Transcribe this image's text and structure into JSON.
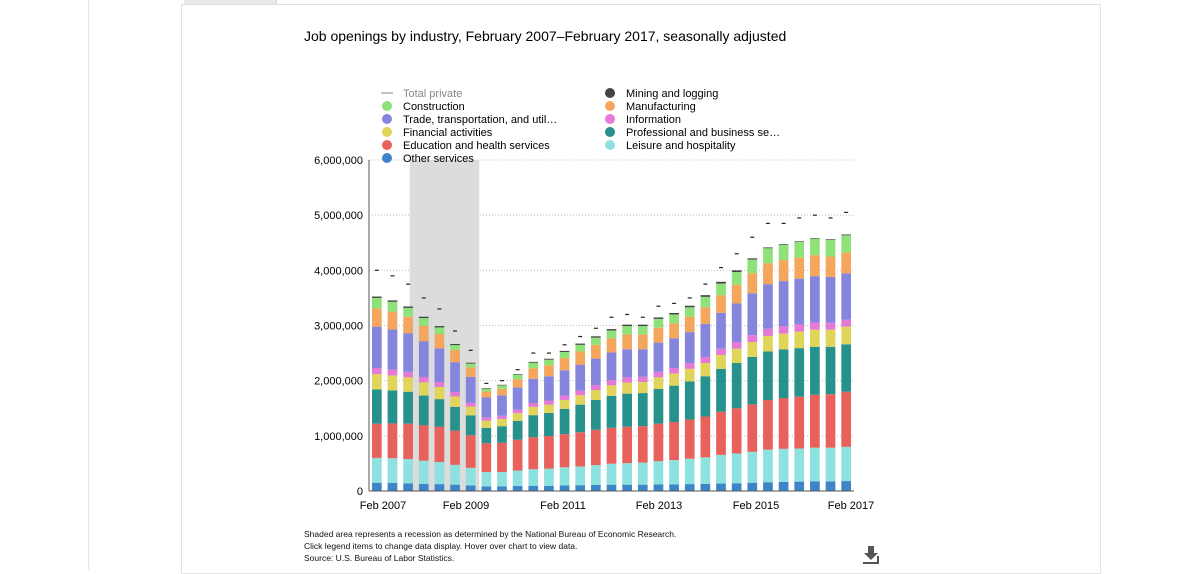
{
  "title": "Job openings by industry, February 2007–February 2017, seasonally adjusted",
  "notes": [
    "Shaded area represents a recession as determined by the National Bureau of Economic Research.",
    "Click legend items to change data display. Hover over chart to view data.",
    "Source: U.S. Bureau of Labor Statistics."
  ],
  "download_icon": "download-icon",
  "chart_data": {
    "type": "bar",
    "stacked": true,
    "title": "Job openings by industry, February 2007–February 2017, seasonally adjusted",
    "xlabel": "",
    "ylabel": "",
    "ylim": [
      0,
      6000000
    ],
    "yticks": [
      0,
      1000000,
      2000000,
      3000000,
      4000000,
      5000000,
      6000000
    ],
    "ytick_labels": [
      "0",
      "1,000,000",
      "2,000,000",
      "3,000,000",
      "4,000,000",
      "5,000,000",
      "6,000,000"
    ],
    "xtick_labels": [
      "Feb 2007",
      "Feb 2009",
      "Feb 2011",
      "Feb 2013",
      "Feb 2015",
      "Feb 2017"
    ],
    "grid": "horizontal dotted",
    "recession_shade": {
      "start": "Dec 2007",
      "end": "Jun 2009"
    },
    "legend_position": "top",
    "x": [
      "Feb 2007",
      "Jun 2007",
      "Oct 2007",
      "Feb 2008",
      "Jun 2008",
      "Oct 2008",
      "Feb 2009",
      "Jun 2009",
      "Oct 2009",
      "Feb 2010",
      "Jun 2010",
      "Oct 2010",
      "Feb 2011",
      "Jun 2011",
      "Oct 2011",
      "Feb 2012",
      "Jun 2012",
      "Oct 2012",
      "Feb 2013",
      "Jun 2013",
      "Oct 2013",
      "Feb 2014",
      "Jun 2014",
      "Oct 2014",
      "Feb 2015",
      "Jun 2015",
      "Oct 2015",
      "Feb 2016",
      "Jun 2016",
      "Oct 2016",
      "Feb 2017"
    ],
    "total_private": [
      4000000,
      3900000,
      3750000,
      3500000,
      3300000,
      2900000,
      2550000,
      1950000,
      2000000,
      2200000,
      2500000,
      2500000,
      2650000,
      2800000,
      2950000,
      3150000,
      3200000,
      3150000,
      3350000,
      3400000,
      3500000,
      3750000,
      4050000,
      4300000,
      4600000,
      4850000,
      4850000,
      4950000,
      5000000,
      4950000,
      5050000
    ],
    "series": [
      {
        "name": "Other services",
        "color": "#3d85c6",
        "values": [
          150000,
          145000,
          140000,
          130000,
          125000,
          115000,
          100000,
          85000,
          85000,
          90000,
          95000,
          95000,
          100000,
          105000,
          110000,
          115000,
          115000,
          115000,
          120000,
          120000,
          125000,
          130000,
          135000,
          140000,
          150000,
          160000,
          165000,
          170000,
          175000,
          175000,
          180000
        ]
      },
      {
        "name": "Leisure and hospitality",
        "color": "#8de2e0",
        "values": [
          450000,
          450000,
          440000,
          420000,
          400000,
          360000,
          320000,
          260000,
          260000,
          280000,
          300000,
          310000,
          330000,
          340000,
          360000,
          380000,
          390000,
          400000,
          420000,
          440000,
          460000,
          480000,
          520000,
          540000,
          560000,
          590000,
          600000,
          600000,
          610000,
          610000,
          620000
        ]
      },
      {
        "name": "Education and health services",
        "color": "#e8615a",
        "values": [
          620000,
          630000,
          640000,
          640000,
          640000,
          620000,
          590000,
          520000,
          530000,
          560000,
          580000,
          590000,
          600000,
          620000,
          640000,
          650000,
          660000,
          660000,
          680000,
          690000,
          710000,
          740000,
          780000,
          820000,
          860000,
          900000,
          920000,
          940000,
          960000,
          970000,
          1000000
        ]
      },
      {
        "name": "Professional and business services",
        "color": "#26918d",
        "values": [
          620000,
          600000,
          580000,
          540000,
          500000,
          430000,
          360000,
          280000,
          300000,
          340000,
          400000,
          420000,
          460000,
          500000,
          540000,
          580000,
          600000,
          600000,
          630000,
          660000,
          690000,
          730000,
          780000,
          820000,
          860000,
          880000,
          880000,
          880000,
          870000,
          860000,
          860000
        ]
      },
      {
        "name": "Financial activities",
        "color": "#e0d45a",
        "values": [
          280000,
          270000,
          260000,
          240000,
          220000,
          190000,
          160000,
          130000,
          130000,
          140000,
          150000,
          150000,
          160000,
          170000,
          180000,
          190000,
          200000,
          200000,
          210000,
          220000,
          230000,
          240000,
          250000,
          260000,
          270000,
          280000,
          290000,
          300000,
          310000,
          310000,
          320000
        ]
      },
      {
        "name": "Information",
        "color": "#e57ad6",
        "values": [
          110000,
          105000,
          100000,
          95000,
          90000,
          80000,
          70000,
          60000,
          60000,
          65000,
          70000,
          75000,
          80000,
          85000,
          90000,
          95000,
          95000,
          95000,
          100000,
          100000,
          105000,
          110000,
          115000,
          120000,
          125000,
          130000,
          130000,
          130000,
          130000,
          125000,
          125000
        ]
      },
      {
        "name": "Trade, transportation, and utilities",
        "color": "#8585de",
        "values": [
          750000,
          730000,
          700000,
          650000,
          610000,
          540000,
          470000,
          360000,
          370000,
          400000,
          440000,
          440000,
          460000,
          470000,
          480000,
          500000,
          510000,
          500000,
          530000,
          540000,
          560000,
          600000,
          650000,
          700000,
          760000,
          810000,
          820000,
          830000,
          840000,
          830000,
          840000
        ]
      },
      {
        "name": "Manufacturing",
        "color": "#f3a65c",
        "values": [
          330000,
          320000,
          300000,
          280000,
          260000,
          220000,
          170000,
          110000,
          120000,
          150000,
          190000,
          200000,
          220000,
          240000,
          250000,
          260000,
          270000,
          270000,
          270000,
          270000,
          280000,
          300000,
          320000,
          340000,
          360000,
          380000,
          380000,
          380000,
          380000,
          370000,
          380000
        ]
      },
      {
        "name": "Construction",
        "color": "#8fe27a",
        "values": [
          190000,
          180000,
          160000,
          140000,
          120000,
          90000,
          70000,
          50000,
          60000,
          80000,
          100000,
          100000,
          110000,
          120000,
          130000,
          140000,
          150000,
          150000,
          160000,
          160000,
          170000,
          190000,
          210000,
          230000,
          250000,
          270000,
          280000,
          290000,
          300000,
          300000,
          310000
        ]
      },
      {
        "name": "Mining and logging",
        "color": "#444444",
        "values": [
          25000,
          25000,
          25000,
          24000,
          24000,
          20000,
          15000,
          10000,
          10000,
          12000,
          15000,
          17000,
          20000,
          22000,
          24000,
          25000,
          25000,
          25000,
          26000,
          27000,
          28000,
          30000,
          32000,
          30000,
          22000,
          15000,
          12000,
          10000,
          10000,
          12000,
          15000
        ]
      }
    ],
    "legend": [
      {
        "label": "Total private",
        "color": "#999999",
        "swatch": "line"
      },
      {
        "label": "Mining and logging",
        "color": "#444444",
        "swatch": "dot"
      },
      {
        "label": "Construction",
        "color": "#8fe27a",
        "swatch": "dot"
      },
      {
        "label": "Manufacturing",
        "color": "#f3a65c",
        "swatch": "dot"
      },
      {
        "label": "Trade, transportation, and util…",
        "color": "#8585de",
        "swatch": "dot"
      },
      {
        "label": "Information",
        "color": "#e57ad6",
        "swatch": "dot"
      },
      {
        "label": "Financial activities",
        "color": "#e0d45a",
        "swatch": "dot"
      },
      {
        "label": "Professional and business se…",
        "color": "#26918d",
        "swatch": "dot"
      },
      {
        "label": "Education and health services",
        "color": "#e8615a",
        "swatch": "dot"
      },
      {
        "label": "Leisure and hospitality",
        "color": "#8de2e0",
        "swatch": "dot"
      },
      {
        "label": "Other services",
        "color": "#3d85c6",
        "swatch": "dot"
      }
    ]
  }
}
